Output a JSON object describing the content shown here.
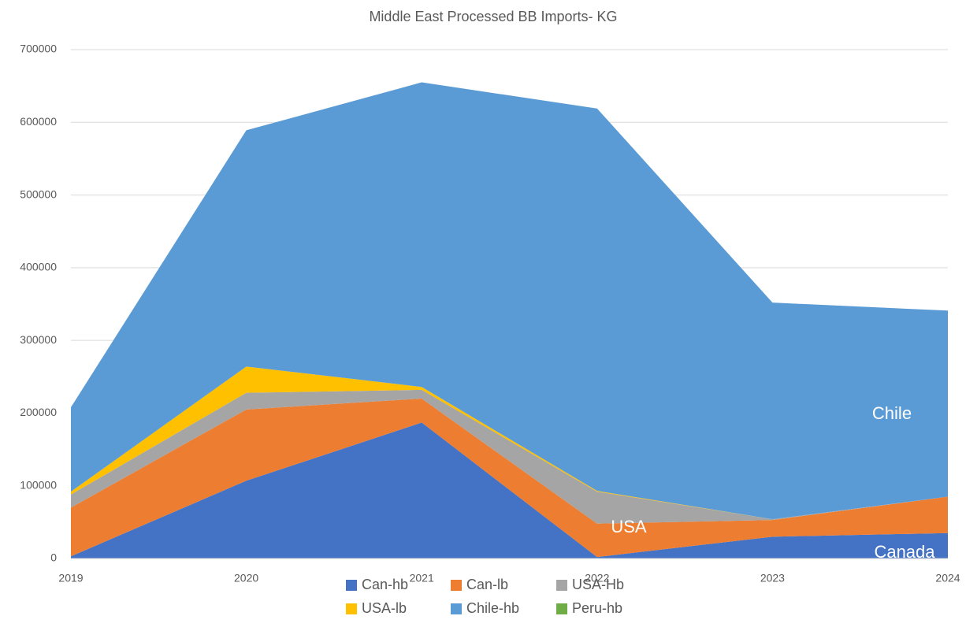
{
  "chart_data": {
    "type": "stacked_area",
    "title": "Middle East Processed BB Imports- KG",
    "categories": [
      "2019",
      "2020",
      "2021",
      "2022",
      "2023",
      "2024"
    ],
    "series": [
      {
        "name": "Can-hb",
        "color": "#4472c4",
        "values": [
          3000,
          107000,
          187000,
          2000,
          30000,
          35000
        ]
      },
      {
        "name": "Can-lb",
        "color": "#ed7d31",
        "values": [
          67000,
          98000,
          33000,
          46000,
          23000,
          50000
        ]
      },
      {
        "name": "USA-Hb",
        "color": "#a5a5a5",
        "values": [
          18000,
          23000,
          12000,
          44000,
          1000,
          0
        ]
      },
      {
        "name": "USA-lb",
        "color": "#ffc000",
        "values": [
          4000,
          36000,
          4000,
          1000,
          0,
          0
        ]
      },
      {
        "name": "Chile-hb",
        "color": "#5b9bd5",
        "values": [
          116000,
          325000,
          419000,
          526000,
          298000,
          256000
        ]
      },
      {
        "name": "Peru-hb",
        "color": "#70ad47",
        "values": [
          0,
          0,
          0,
          0,
          0,
          0
        ]
      }
    ],
    "annotations": [
      "Chile",
      "USA",
      "Canada"
    ],
    "ylim": [
      0,
      700000
    ],
    "yticks": [
      0,
      100000,
      200000,
      300000,
      400000,
      500000,
      600000,
      700000
    ],
    "grid": true,
    "legend": "bottom"
  }
}
